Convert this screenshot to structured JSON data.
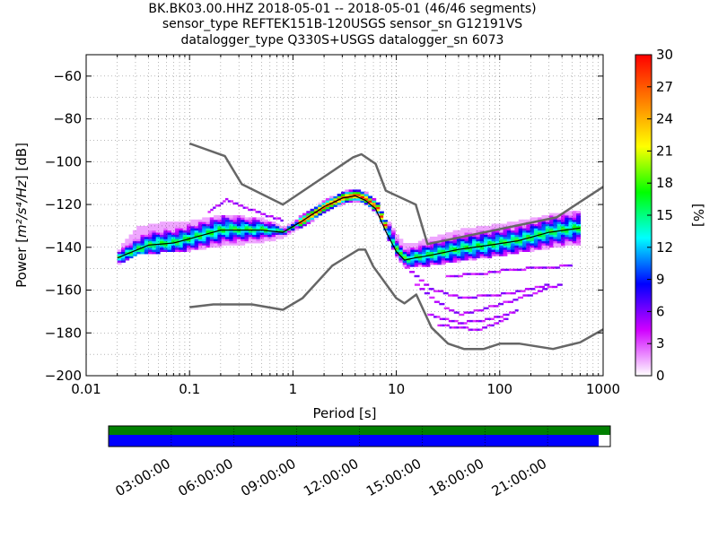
{
  "header": {
    "line1": "BK.BK03.00.HHZ   2018-05-01 -- 2018-05-01  (46/46 segments)",
    "line2": "sensor_type REFTEK151B-120USGS sensor_sn G12191VS",
    "line3": "datalogger_type Q330S+USGS datalogger_sn 6073"
  },
  "chart_data": {
    "type": "heatmap",
    "xlabel": "Period [s]",
    "ylabel_prefix": "Power [",
    "ylabel_units": "m²/s⁴/Hz",
    "ylabel_suffix": "] [dB]",
    "x_scale": "log",
    "xlim": [
      0.01,
      1000
    ],
    "ylim": [
      -200,
      -50
    ],
    "x_ticks": [
      0.01,
      0.1,
      1,
      10,
      100,
      1000
    ],
    "x_tick_labels": [
      "0.01",
      "0.1",
      "1",
      "10",
      "100",
      "1000"
    ],
    "y_ticks": [
      -200,
      -180,
      -160,
      -140,
      -120,
      -100,
      -80,
      -60
    ],
    "y_tick_labels": [
      "−200",
      "−180",
      "−160",
      "−140",
      "−120",
      "−100",
      "−80",
      "−60"
    ],
    "grid": true,
    "colorbar": {
      "label": "[%]",
      "range": [
        0,
        30
      ],
      "ticks": [
        0,
        3,
        6,
        9,
        12,
        15,
        18,
        21,
        24,
        27,
        30
      ],
      "tick_labels": [
        "0",
        "3",
        "6",
        "9",
        "12",
        "15",
        "18",
        "21",
        "24",
        "27",
        "30"
      ],
      "colormap": [
        "#ffffff",
        "#d000ff",
        "#0000ff",
        "#00ffff",
        "#00ff00",
        "#ffff00",
        "#ff7f00",
        "#ff0000"
      ]
    },
    "nhnm": {
      "name": "NHNM",
      "color": "#666666",
      "period": [
        0.1,
        0.22,
        0.32,
        0.8,
        3.8,
        4.6,
        6.3,
        7.9,
        15.4,
        20,
        354.8,
        10000
      ],
      "power": [
        -91.5,
        -97.4,
        -110.5,
        -120,
        -98,
        -96.5,
        -101,
        -113.5,
        -120,
        -138.5,
        -126,
        -80
      ]
    },
    "nlnm": {
      "name": "NLNM",
      "color": "#666666",
      "period": [
        0.1,
        0.17,
        0.4,
        0.8,
        1.24,
        2.4,
        4.3,
        5,
        6,
        10,
        12,
        15.6,
        21.9,
        31.6,
        45,
        70,
        101,
        154,
        328,
        600,
        1000
      ],
      "power": [
        -168,
        -166.7,
        -166.7,
        -169.2,
        -163.7,
        -148.6,
        -141.1,
        -141.1,
        -149,
        -163.8,
        -166.2,
        -162.1,
        -177.5,
        -185,
        -187.5,
        -187.5,
        -185,
        -185,
        -187.5,
        -184.4,
        -178.4
      ]
    },
    "mode": {
      "name": "mode",
      "period": [
        0.02,
        0.04,
        0.07,
        0.1,
        0.2,
        0.5,
        0.8,
        1.2,
        2,
        3,
        4,
        5,
        6.3,
        8,
        10,
        12,
        15,
        20,
        40,
        80,
        150,
        300,
        600
      ],
      "power": [
        -145,
        -139,
        -138,
        -136,
        -132,
        -132,
        -133,
        -128,
        -121,
        -117,
        -116,
        -118,
        -122,
        -133,
        -142,
        -146,
        -145,
        -144,
        -141,
        -139,
        -137,
        -133,
        -131
      ]
    },
    "distribution_band": {
      "period": [
        0.02,
        0.03,
        0.05,
        0.1,
        0.2,
        0.5,
        0.8,
        1.2,
        2,
        3,
        4,
        5,
        6.3,
        8,
        10,
        12,
        15,
        20,
        40,
        80,
        150,
        300,
        600
      ],
      "upper": [
        -142,
        -132,
        -130,
        -129,
        -126,
        -128,
        -132,
        -126,
        -119,
        -115,
        -114,
        -116,
        -120,
        -129,
        -136,
        -140,
        -139,
        -137,
        -133,
        -131,
        -129,
        -126,
        -124
      ],
      "lower": [
        -148,
        -143,
        -142,
        -141,
        -139,
        -137,
        -135,
        -130,
        -123,
        -119,
        -118,
        -120,
        -125,
        -136,
        -146,
        -149,
        -149,
        -148,
        -146,
        -144,
        -142,
        -140,
        -138
      ]
    },
    "outlier_traces": [
      {
        "period": [
          0.15,
          0.22,
          0.3,
          0.5,
          0.8
        ],
        "power": [
          -124,
          -118,
          -121,
          -125,
          -128
        ]
      },
      {
        "period": [
          12,
          20,
          40,
          80,
          150,
          300
        ],
        "power": [
          -150,
          -160,
          -164,
          -163,
          -161,
          -158
        ]
      },
      {
        "period": [
          15,
          25,
          40,
          60,
          100,
          200,
          400
        ],
        "power": [
          -158,
          -167,
          -172,
          -170,
          -167,
          -162,
          -157
        ]
      },
      {
        "period": [
          20,
          40,
          80,
          150
        ],
        "power": [
          -172,
          -176,
          -174,
          -170
        ]
      },
      {
        "period": [
          25,
          40,
          60,
          80,
          120
        ],
        "power": [
          -177,
          -178,
          -179,
          -177,
          -173
        ]
      },
      {
        "period": [
          30,
          60,
          120,
          250,
          500
        ],
        "power": [
          -154,
          -153,
          -151,
          -150,
          -149
        ]
      }
    ],
    "coverage": {
      "timeline_labels": [
        "03:00:00",
        "06:00:00",
        "09:00:00",
        "12:00:00",
        "15:00:00",
        "18:00:00",
        "21:00:00"
      ],
      "data_fraction": 0.977,
      "processed_fraction": 1.0,
      "data_color": "#0000ff",
      "processed_color": "#008000"
    }
  }
}
